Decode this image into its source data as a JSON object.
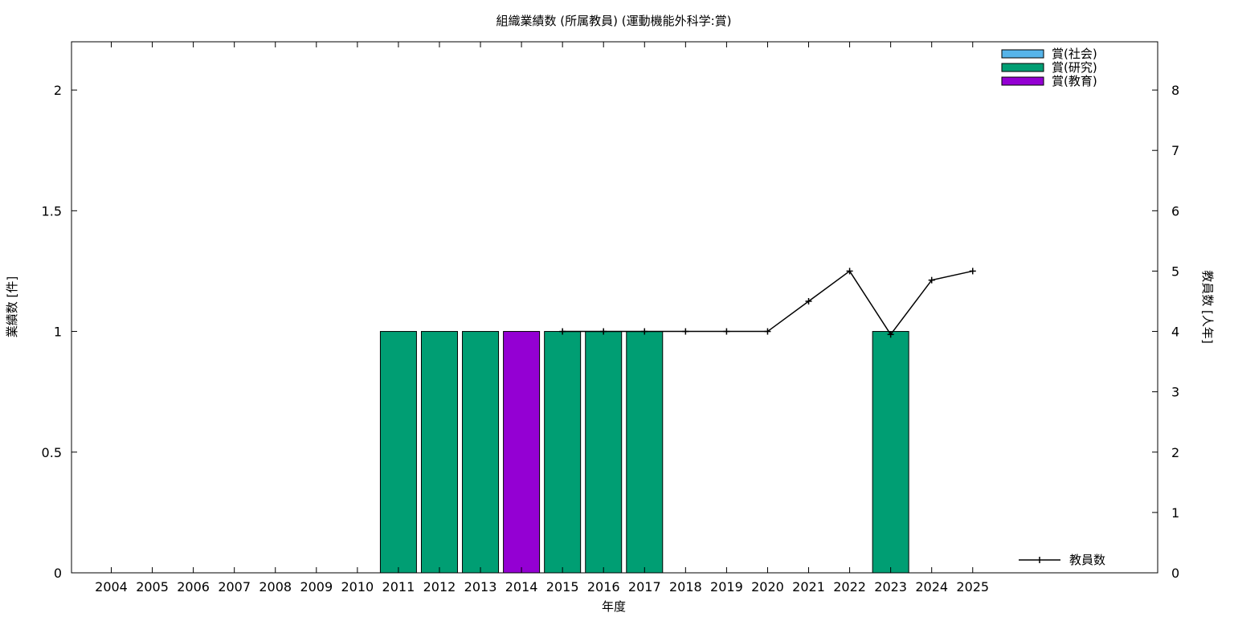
{
  "chart_data": {
    "type": "bar",
    "title": "組織業績数 (所属教員) (運動機能外科学:賞)",
    "xlabel": "年度",
    "ylabel": "業績数 [件]",
    "y2label": "教員数 [人年]",
    "categories": [
      "2004",
      "2005",
      "2006",
      "2007",
      "2008",
      "2009",
      "2010",
      "2011",
      "2012",
      "2013",
      "2014",
      "2015",
      "2016",
      "2017",
      "2018",
      "2019",
      "2020",
      "2021",
      "2022",
      "2023",
      "2024",
      "2025"
    ],
    "ylim": [
      0,
      2.2
    ],
    "y2lim": [
      0,
      8.8
    ],
    "yticks": [
      "0",
      "0.5",
      "1",
      "1.5",
      "2"
    ],
    "y2ticks": [
      "0",
      "1",
      "2",
      "3",
      "4",
      "5",
      "6",
      "7",
      "8"
    ],
    "series": [
      {
        "name": "賞(社会)",
        "color": "#56b4e9",
        "values": [
          0,
          0,
          0,
          0,
          0,
          0,
          0,
          0,
          0,
          0,
          0,
          0,
          0,
          0,
          0,
          0,
          0,
          0,
          0,
          0,
          0,
          0
        ]
      },
      {
        "name": "賞(研究)",
        "color": "#009e73",
        "values": [
          0,
          0,
          0,
          0,
          0,
          0,
          0,
          1,
          1,
          1,
          0,
          1,
          1,
          1,
          0,
          0,
          0,
          0,
          0,
          1,
          0,
          0
        ]
      },
      {
        "name": "賞(教育)",
        "color": "#9400d3",
        "values": [
          0,
          0,
          0,
          0,
          0,
          0,
          0,
          0,
          0,
          0,
          1,
          0,
          0,
          0,
          0,
          0,
          0,
          0,
          0,
          0,
          0,
          0
        ]
      }
    ],
    "line_series": {
      "name": "教員数",
      "color": "#000000",
      "x": [
        "2015",
        "2016",
        "2017",
        "2018",
        "2019",
        "2020",
        "2021",
        "2022",
        "2023",
        "2024",
        "2025"
      ],
      "values": [
        4,
        4,
        4,
        4,
        4,
        4,
        4.5,
        5,
        3.95,
        4.85,
        5
      ]
    },
    "legend_position": "top-right",
    "line_legend_position": "bottom-right",
    "grid": false
  }
}
